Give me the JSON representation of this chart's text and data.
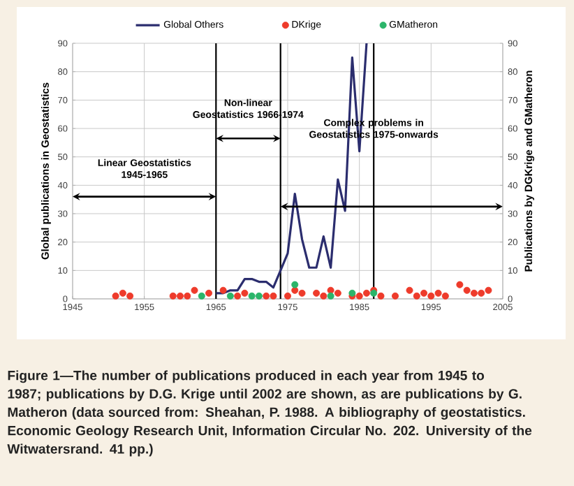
{
  "chart_data": {
    "type": "line",
    "xlabel": null,
    "ylabel": "Global publications in Geostatistics",
    "y2label": "Publications by DGKrige and GMatheron",
    "xlim": [
      1945,
      2005
    ],
    "xticks": [
      1945,
      1955,
      1965,
      1975,
      1985,
      1995,
      2005
    ],
    "ylim": [
      0,
      90
    ],
    "yticks": [
      0,
      10,
      20,
      30,
      40,
      50,
      60,
      70,
      80,
      90
    ],
    "y2lim": [
      0,
      90
    ],
    "y2ticks": [
      0,
      10,
      20,
      30,
      40,
      50,
      60,
      70,
      80,
      90
    ],
    "grid": true,
    "legend": "top",
    "series": [
      {
        "name": "Global Others",
        "color": "#2b2d6e",
        "x": [
          1965,
          1966,
          1967,
          1968,
          1969,
          1970,
          1971,
          1972,
          1973,
          1974,
          1975,
          1976,
          1977,
          1978,
          1979,
          1980,
          1981,
          1982,
          1983,
          1984,
          1985,
          1986
        ],
        "values": [
          2,
          2,
          3,
          3,
          7,
          7,
          6,
          6,
          4,
          10,
          16,
          37,
          21,
          11,
          11,
          22,
          11,
          42,
          31,
          85,
          52,
          90
        ]
      },
      {
        "name": "DKrige",
        "type": "scatter",
        "axis": "y2",
        "color": "#ee3b2b",
        "x": [
          1951,
          1952,
          1953,
          1959,
          1960,
          1961,
          1962,
          1964,
          1966,
          1968,
          1969,
          1972,
          1973,
          1975,
          1976,
          1977,
          1979,
          1980,
          1981,
          1982,
          1984,
          1985,
          1986,
          1987,
          1988,
          1990,
          1992,
          1993,
          1994,
          1995,
          1996,
          1997,
          1999,
          2000,
          2001,
          2002,
          2003
        ],
        "values": [
          1,
          2,
          1,
          1,
          1,
          1,
          3,
          2,
          3,
          1,
          2,
          1,
          1,
          1,
          3,
          2,
          2,
          1,
          3,
          2,
          1,
          1,
          2,
          3,
          1,
          1,
          3,
          1,
          2,
          1,
          2,
          1,
          5,
          3,
          2,
          2,
          3
        ]
      },
      {
        "name": "GMatheron",
        "type": "scatter",
        "axis": "y2",
        "color": "#2bb56a",
        "x": [
          1963,
          1967,
          1970,
          1971,
          1976,
          1981,
          1984,
          1987
        ],
        "values": [
          1,
          1,
          1,
          1,
          5,
          1,
          2,
          2
        ]
      }
    ],
    "ref_lines": [
      {
        "axis": "x",
        "value": 1965,
        "color": "#000000"
      },
      {
        "axis": "x",
        "value": 1974,
        "color": "#000000"
      },
      {
        "axis": "x",
        "value": 1987,
        "color": "#000000"
      }
    ],
    "annotations": [
      "Linear Geostatistics 1945-1965",
      "Non-linear Geostatistics 1966-1974",
      "Complex problems in Geostatistics 1975-onwards",
      "Figure 1—The number of publications produced in each year from 1945 to 1987; publications by D.G. Krige until 2002 are shown, as are publications by G. Matheron (data sourced from: Sheahan, P. 1988. A bibliography of geostatistics. Economic Geology Research Unit, Information Circular No. 202. University of the Witwatersrand. 41 pp.)"
    ]
  }
}
